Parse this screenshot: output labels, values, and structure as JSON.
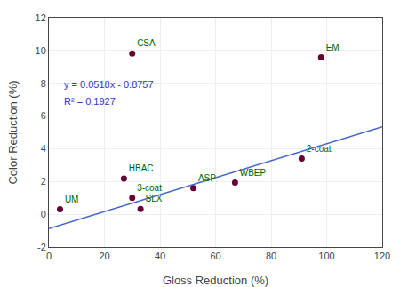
{
  "chart_data": {
    "type": "scatter",
    "xlabel": "Gloss Reduction (%)",
    "ylabel": "Color Reduction (%)",
    "xlim": [
      0,
      120
    ],
    "ylim": [
      -2,
      12
    ],
    "xticks": [
      0,
      20,
      40,
      60,
      80,
      100,
      120
    ],
    "yticks": [
      -2,
      0,
      2,
      4,
      6,
      8,
      10,
      12
    ],
    "grid": true,
    "series": [
      {
        "type": "line",
        "color": "#4466cc",
        "x": [
          0,
          120
        ],
        "values": [
          -0.8757,
          5.3403
        ]
      },
      {
        "type": "scatter",
        "marker": "circle",
        "color": "#660033",
        "x": [
          4,
          27,
          30,
          33,
          30,
          52,
          67,
          91,
          98
        ],
        "values": [
          0.3,
          2.18,
          1.0,
          0.32,
          9.82,
          1.6,
          1.93,
          3.4,
          9.58
        ],
        "labels": [
          "UM",
          "HBAC",
          "3-coat",
          "SLX",
          "CSA",
          "ASP",
          "WBEP",
          "2-coat",
          "EM"
        ],
        "label_color": "#006600"
      }
    ],
    "annotations": [
      {
        "text": "y = 0.0518x - 0.8757",
        "color": "#3333cc"
      },
      {
        "text": "R² = 0.1927",
        "color": "#3333cc"
      }
    ]
  }
}
